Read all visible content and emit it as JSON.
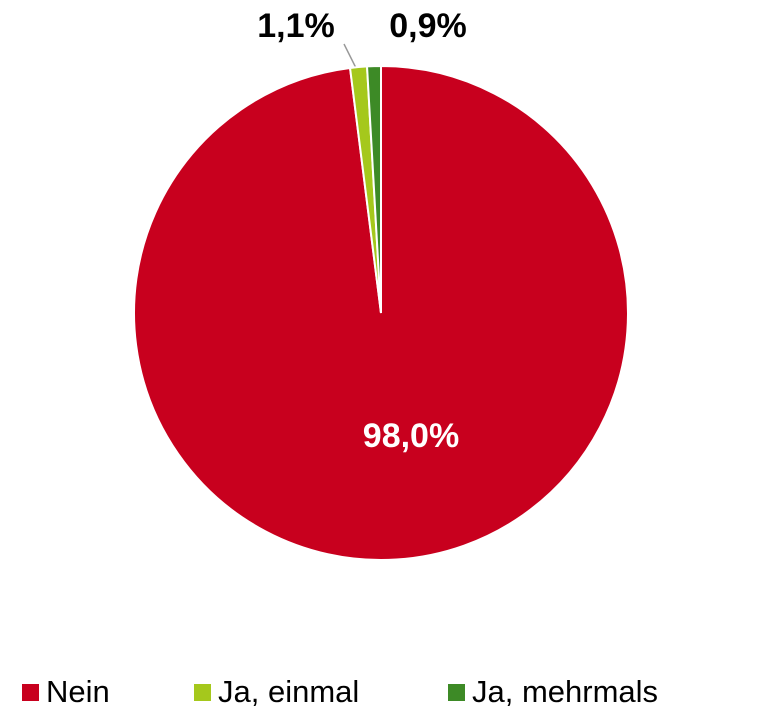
{
  "chart_data": {
    "type": "pie",
    "categories": [
      "Nein",
      "Ja, einmal",
      "Ja, mehrmals"
    ],
    "values": [
      98.0,
      1.1,
      0.9
    ],
    "value_labels": [
      "98,0%",
      "1,1%",
      "0,9%"
    ],
    "colors": [
      "#c8001e",
      "#a5c81c",
      "#3d8a26"
    ],
    "legend": "bottom"
  }
}
